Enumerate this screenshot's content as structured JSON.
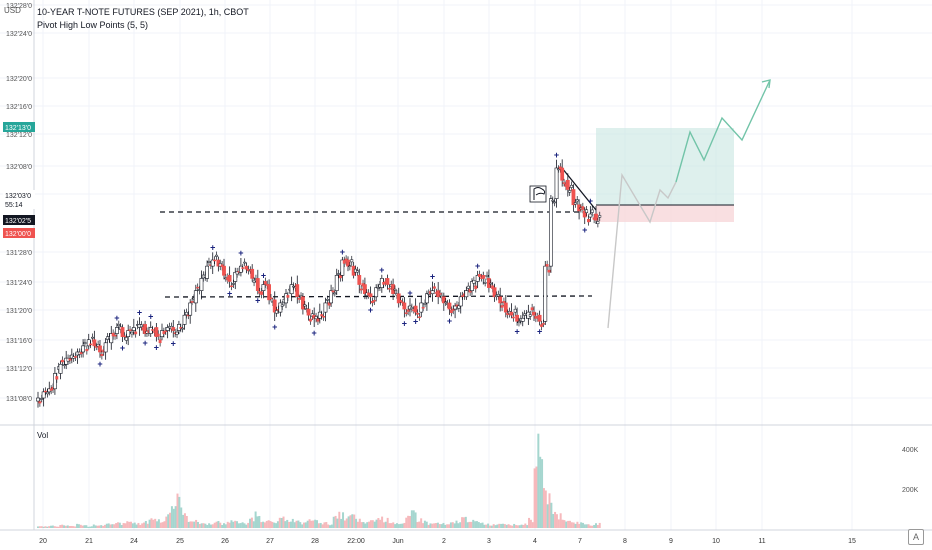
{
  "header": {
    "currency": "USD",
    "symbol_title": "10-YEAR T-NOTE FUTURES (SEP 2021), 1h, CBOT",
    "indicator": "Pivot High Low Points (5, 5)"
  },
  "price_axis": {
    "ticks": [
      "132'28'0",
      "132'24'0",
      "132'20'0",
      "132'16'0",
      "132'12'0",
      "132'08'0",
      "132'04'0",
      "131'28'0",
      "131'24'0",
      "131'20'0",
      "131'16'0",
      "131'12'0",
      "131'08'0"
    ],
    "labels": [
      {
        "text": "132'13'0",
        "bg": "#26a69a",
        "color": "#ffffff"
      },
      {
        "text": "132'03'0",
        "bg": "#ffffff",
        "color": "#131722"
      },
      {
        "text": "55:14",
        "bg": "#ffffff",
        "color": "#131722"
      },
      {
        "text": "132'02'5",
        "bg": "#131722",
        "color": "#ffffff"
      },
      {
        "text": "132'00'0",
        "bg": "#ef5350",
        "color": "#ffffff"
      }
    ]
  },
  "volume": {
    "label": "Vol",
    "ticks": [
      "400K",
      "200K"
    ]
  },
  "time_axis": {
    "ticks": [
      "20",
      "21",
      "24",
      "25",
      "26",
      "27",
      "28",
      "22:00",
      "Jun",
      "2",
      "3",
      "4",
      "7",
      "8",
      "9",
      "10",
      "11",
      "15"
    ]
  },
  "chart_data": {
    "type": "candlestick",
    "symbol": "10-YEAR T-NOTE FUTURES (SEP 2021)",
    "interval": "1h",
    "ylim": [
      "131'06'0",
      "132'29'0"
    ],
    "price_ticks": [
      "131'08'0",
      "131'12'0",
      "131'16'0",
      "131'20'0",
      "131'24'0",
      "131'28'0",
      "132'04'0",
      "132'08'0",
      "132'12'0",
      "132'16'0",
      "132'20'0",
      "132'24'0",
      "132'28'0"
    ],
    "close_path": [
      131.07,
      131.09,
      131.1,
      131.15,
      131.18,
      131.2,
      131.21,
      131.22,
      131.24,
      131.26,
      131.24,
      131.22,
      131.25,
      131.28,
      131.3,
      131.27,
      131.29,
      131.3,
      131.31,
      131.28,
      131.3,
      131.27,
      131.29,
      131.3,
      131.29,
      131.31,
      131.34,
      131.38,
      131.42,
      131.46,
      131.5,
      131.52,
      131.5,
      131.47,
      131.45,
      131.48,
      131.5,
      131.49,
      131.46,
      131.42,
      131.44,
      131.39,
      131.35,
      131.38,
      131.41,
      131.44,
      131.4,
      131.36,
      131.34,
      131.33,
      131.35,
      131.38,
      131.42,
      131.47,
      131.52,
      131.5,
      131.47,
      131.44,
      131.41,
      131.4,
      131.43,
      131.46,
      131.44,
      131.41,
      131.38,
      131.36,
      131.37,
      131.35,
      131.38,
      131.41,
      131.42,
      131.4,
      131.38,
      131.36,
      131.37,
      131.4,
      131.42,
      131.45,
      131.47,
      131.46,
      131.43,
      131.4,
      131.38,
      131.35,
      131.34,
      131.32,
      131.33,
      131.35,
      131.34,
      131.32,
      131.5,
      131.72,
      131.82,
      131.78,
      131.75,
      131.7,
      131.68,
      131.66,
      131.67,
      131.65
    ],
    "volume_path": [
      0.02,
      0.02,
      0.03,
      0.02,
      0.04,
      0.03,
      0.02,
      0.05,
      0.03,
      0.02,
      0.04,
      0.03,
      0.05,
      0.04,
      0.06,
      0.05,
      0.08,
      0.06,
      0.05,
      0.07,
      0.12,
      0.1,
      0.08,
      0.2,
      0.28,
      0.35,
      0.15,
      0.1,
      0.08,
      0.06,
      0.05,
      0.06,
      0.07,
      0.05,
      0.08,
      0.1,
      0.06,
      0.05,
      0.12,
      0.18,
      0.1,
      0.08,
      0.06,
      0.1,
      0.12,
      0.1,
      0.08,
      0.06,
      0.09,
      0.1,
      0.08,
      0.06,
      0.05,
      0.12,
      0.16,
      0.12,
      0.15,
      0.1,
      0.06,
      0.08,
      0.1,
      0.12,
      0.1,
      0.08,
      0.06,
      0.05,
      0.12,
      0.2,
      0.1,
      0.08,
      0.05,
      0.06,
      0.05,
      0.04,
      0.06,
      0.08,
      0.12,
      0.1,
      0.08,
      0.06,
      0.05,
      0.04,
      0.05,
      0.06,
      0.05,
      0.04,
      0.04,
      0.05,
      0.1,
      0.95,
      0.7,
      0.4,
      0.25,
      0.15,
      0.1,
      0.08,
      0.07,
      0.06,
      0.05,
      0.04,
      0.05
    ],
    "colors": {
      "up": "#26a69a",
      "down": "#ef5350",
      "pivot": "#1a237e",
      "projection_up": "#72c4a8",
      "projection_gray": "#bdbdbd",
      "long_profit": "#c8e6e1",
      "long_loss": "#f8d7d9",
      "vol_up": "#a5d6cf",
      "vol_down": "#f6b9bc"
    },
    "projection": {
      "type": "long_position",
      "target": "132'13'0",
      "stop": "132'00'0",
      "entry": "132'02'5"
    }
  }
}
